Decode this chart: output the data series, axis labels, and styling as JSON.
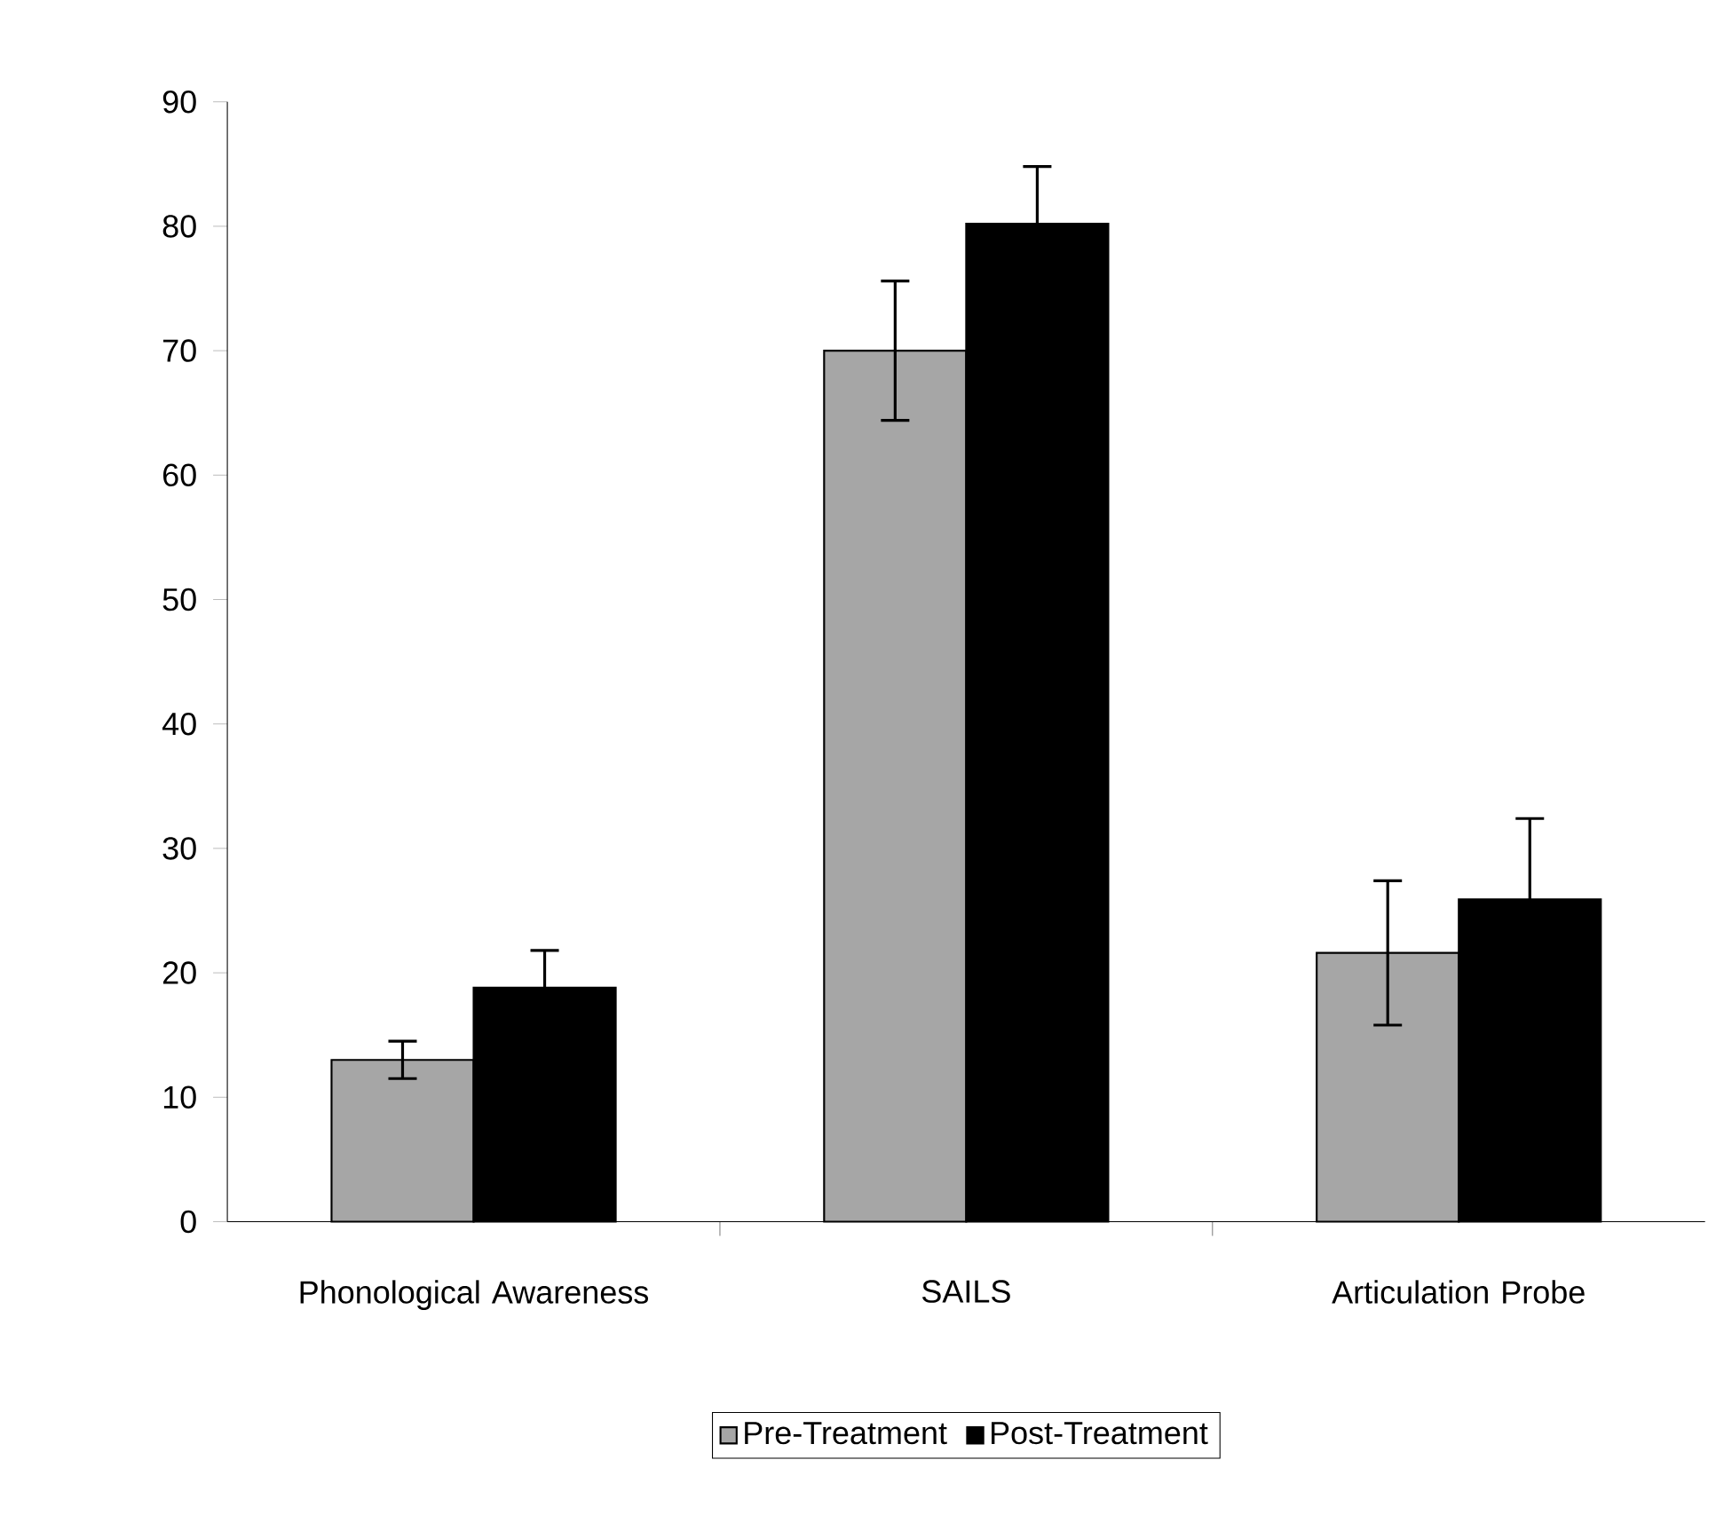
{
  "chart_data": {
    "type": "bar",
    "categories": [
      "Phonological Awareness",
      "SAILS",
      "Articulation Probe"
    ],
    "series": [
      {
        "name": "Pre-Treatment",
        "color": "#a6a6a6",
        "values": [
          13.0,
          70.0,
          21.6
        ],
        "errors": [
          1.5,
          5.6,
          5.8
        ]
      },
      {
        "name": "Post-Treatment",
        "color": "#000000",
        "values": [
          18.8,
          80.2,
          25.9
        ],
        "errors": [
          3.0,
          4.6,
          6.5
        ]
      }
    ],
    "ylim": [
      0,
      90
    ],
    "yticks": [
      0,
      10,
      20,
      30,
      40,
      50,
      60,
      70,
      80,
      90
    ],
    "grid": false,
    "legend": "bottom"
  }
}
